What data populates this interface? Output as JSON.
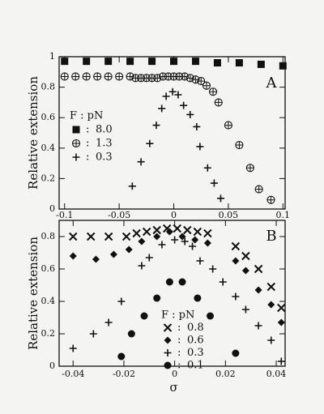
{
  "chart_data": [
    {
      "type": "scatter",
      "annotation": "A",
      "ylabel": "Relative extension",
      "legend_title": "F : pN",
      "legend_separator": ":",
      "xlim": [
        -0.105,
        0.102
      ],
      "xticks": [
        -0.1,
        -0.05,
        0,
        0.05,
        0.1
      ],
      "ylim": [
        0,
        1
      ],
      "yticks": [
        0,
        0.2,
        0.4,
        0.6,
        0.8,
        1
      ],
      "series": [
        {
          "name": "8.0",
          "marker": "square",
          "color": "#111111",
          "x": [
            -0.1,
            -0.08,
            -0.06,
            -0.04,
            -0.02,
            0,
            0.02,
            0.04,
            0.06,
            0.08,
            0.1
          ],
          "values": [
            0.97,
            0.97,
            0.97,
            0.97,
            0.97,
            0.97,
            0.97,
            0.96,
            0.96,
            0.95,
            0.94
          ]
        },
        {
          "name": "1.3",
          "marker": "circle-plus",
          "color": "#111111",
          "x": [
            -0.1,
            -0.09,
            -0.08,
            -0.07,
            -0.06,
            -0.05,
            -0.04,
            -0.035,
            -0.03,
            -0.025,
            -0.02,
            -0.015,
            -0.01,
            -0.005,
            0,
            0.005,
            0.01,
            0.015,
            0.02,
            0.025,
            0.03,
            0.036,
            0.041,
            0.05,
            0.06,
            0.07,
            0.078,
            0.089
          ],
          "values": [
            0.87,
            0.87,
            0.87,
            0.87,
            0.87,
            0.87,
            0.87,
            0.86,
            0.86,
            0.86,
            0.86,
            0.86,
            0.87,
            0.87,
            0.87,
            0.87,
            0.87,
            0.86,
            0.85,
            0.84,
            0.81,
            0.77,
            0.7,
            0.55,
            0.42,
            0.27,
            0.13,
            0.06
          ]
        },
        {
          "name": "0.3",
          "marker": "plus",
          "color": "#111111",
          "x": [
            -0.038,
            -0.03,
            -0.022,
            -0.016,
            -0.011,
            -0.007,
            -0.001,
            0.004,
            0.009,
            0.015,
            0.021,
            0.024,
            0.031,
            0.037,
            0.043
          ],
          "values": [
            0.15,
            0.31,
            0.43,
            0.55,
            0.66,
            0.74,
            0.77,
            0.75,
            0.68,
            0.62,
            0.54,
            0.41,
            0.27,
            0.17,
            0.07
          ]
        }
      ]
    },
    {
      "type": "scatter",
      "annotation": "B",
      "ylabel": "Relative extension",
      "xlabel": "σ",
      "legend_title": "F : pN",
      "legend_separator": ":",
      "xlim": [
        -0.0455,
        0.0435
      ],
      "xticks": [
        -0.04,
        -0.02,
        0,
        0.02,
        0.04
      ],
      "ylim": [
        0,
        0.9
      ],
      "yticks": [
        0,
        0.2,
        0.4,
        0.6,
        0.8
      ],
      "series": [
        {
          "name": "0.8",
          "marker": "cross",
          "color": "#111111",
          "x": [
            -0.04,
            -0.033,
            -0.026,
            -0.019,
            -0.015,
            -0.011,
            -0.007,
            -0.003,
            0.001,
            0.005,
            0.009,
            0.013,
            0.024,
            0.028,
            0.033,
            0.038,
            0.042
          ],
          "values": [
            0.8,
            0.8,
            0.8,
            0.8,
            0.82,
            0.83,
            0.84,
            0.85,
            0.85,
            0.84,
            0.83,
            0.82,
            0.74,
            0.68,
            0.6,
            0.49,
            0.36
          ]
        },
        {
          "name": "0.6",
          "marker": "diamond",
          "color": "#111111",
          "x": [
            -0.04,
            -0.031,
            -0.024,
            -0.018,
            -0.013,
            -0.007,
            -0.002,
            0.003,
            0.008,
            0.013,
            0.024,
            0.028,
            0.033,
            0.038,
            0.042
          ],
          "values": [
            0.68,
            0.66,
            0.69,
            0.72,
            0.77,
            0.8,
            0.83,
            0.8,
            0.78,
            0.76,
            0.65,
            0.59,
            0.47,
            0.38,
            0.27
          ]
        },
        {
          "name": "0.3",
          "marker": "plus",
          "color": "#111111",
          "x": [
            -0.04,
            -0.032,
            -0.026,
            -0.021,
            -0.013,
            -0.01,
            -0.005,
            0,
            0.004,
            0.007,
            0.01,
            0.015,
            0.019,
            0.024,
            0.028,
            0.033,
            0.038,
            0.042
          ],
          "values": [
            0.11,
            0.2,
            0.27,
            0.4,
            0.62,
            0.67,
            0.75,
            0.78,
            0.77,
            0.74,
            0.65,
            0.6,
            0.52,
            0.43,
            0.35,
            0.25,
            0.16,
            0.03
          ]
        },
        {
          "name": "0.1",
          "marker": "circle",
          "color": "#111111",
          "x": [
            -0.021,
            -0.017,
            -0.012,
            -0.007,
            -0.002,
            0.003,
            0.009,
            0.014,
            0.024
          ],
          "values": [
            0.06,
            0.2,
            0.31,
            0.42,
            0.52,
            0.52,
            0.42,
            0.31,
            0.08
          ]
        }
      ]
    }
  ]
}
